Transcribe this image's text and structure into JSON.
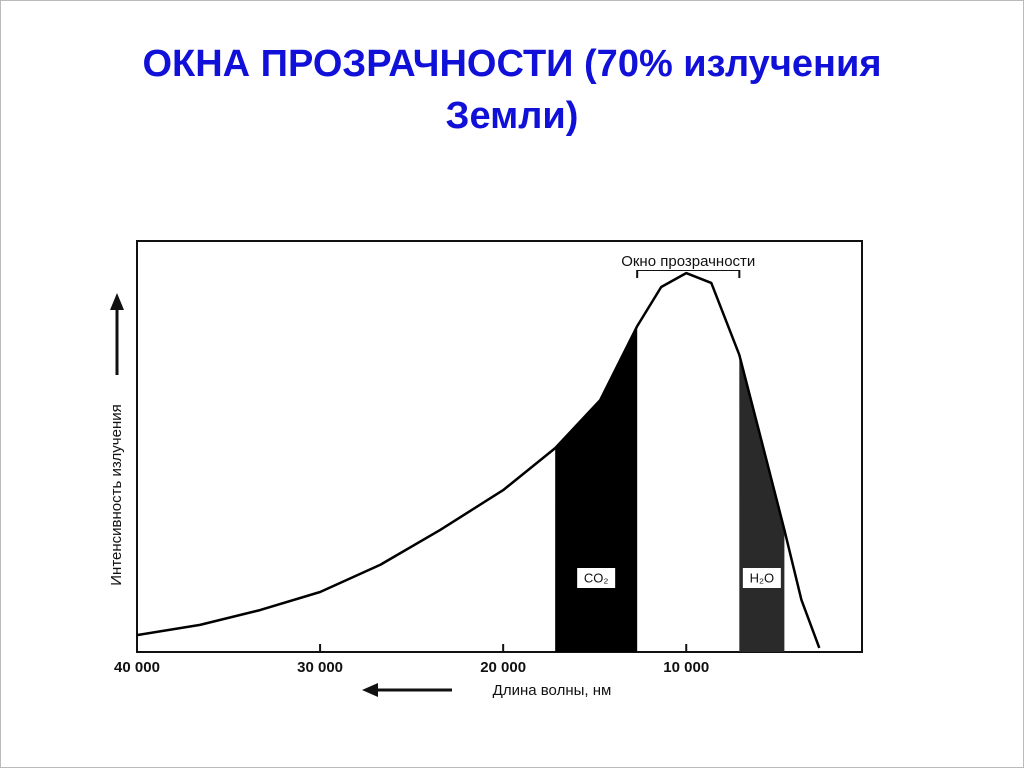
{
  "chart_data": {
    "type": "line",
    "title": [
      "ОКНА ПРОЗРАЧНОСТИ (70% излучения",
      "Земли)"
    ],
    "x_label": "Длина волны, нм",
    "y_label": "Интенсивность излучения",
    "x": [
      40000,
      36560,
      33280,
      30000,
      26720,
      23440,
      20000,
      17160,
      14700,
      12680,
      11370,
      10000,
      8630,
      7100,
      5900,
      4640,
      3710,
      2730
    ],
    "values": [
      4.1,
      6.6,
      10.2,
      14.6,
      21.2,
      29.7,
      39.4,
      49.6,
      61.3,
      79.3,
      88.8,
      92.2,
      89.8,
      72.3,
      51.6,
      29.7,
      12.7,
      1.0
    ],
    "color": "#000000",
    "xlim": [
      40000,
      400
    ],
    "ylim": [
      0,
      100
    ],
    "xticks": [
      {
        "value": 40000,
        "label": "40 000"
      },
      {
        "value": 30000,
        "label": "30 000"
      },
      {
        "value": 20000,
        "label": "20 000"
      },
      {
        "value": 10000,
        "label": "10 000"
      }
    ],
    "bands": [
      {
        "label": "CO₂",
        "from": 17160,
        "to": 12680,
        "color": "#000000"
      },
      {
        "label": "H₂O",
        "from": 7100,
        "to": 4640,
        "color": "#2a2a2a"
      }
    ],
    "window": {
      "label": "Окно прозрачности",
      "from": 12680,
      "to": 7100
    }
  }
}
